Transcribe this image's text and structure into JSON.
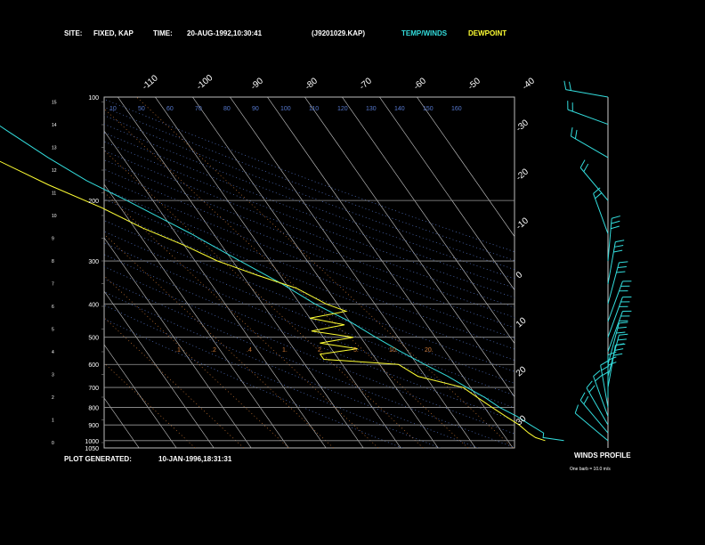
{
  "header": {
    "site_label": "SITE:",
    "site_value": "FIXED, KAP",
    "time_label": "TIME:",
    "time_value": "20-AUG-1992,10:30:41",
    "file_value": "(J9201029.KAP)",
    "legend_temp": "TEMP/WINDS",
    "legend_dew": "DEWPOINT"
  },
  "footer": {
    "generated_label": "PLOT GENERATED:",
    "generated_value": "10-JAN-1996,18:31:31"
  },
  "winds": {
    "title": "WINDS PROFILE",
    "note": "One barb = 10.0 m/s"
  },
  "colors": {
    "temp": "#33dddd",
    "dew": "#ffff33",
    "isotherm": "#cccccc",
    "isobar": "#999999",
    "mixing": "#cc7733",
    "adiabat": "#5577cc"
  },
  "chart_data": {
    "type": "line",
    "title": "",
    "ylabel": "",
    "pressure_ticks": [
      "100",
      "200",
      "300",
      "400",
      "500",
      "600",
      "700",
      "800",
      "900",
      "1000",
      "1050"
    ],
    "height_ticks": [
      "0",
      "1",
      "2",
      "3",
      "4",
      "5",
      "6",
      "7",
      "8",
      "9",
      "10",
      "11",
      "12",
      "13",
      "14",
      "15"
    ],
    "isotherm_labels_top": [
      "-110",
      "-100",
      "-90",
      "-80",
      "-70",
      "-60",
      "-50",
      "-40"
    ],
    "isotherm_labels_right": [
      "-30",
      "-20",
      "-10",
      "0",
      "10",
      "20",
      "30"
    ],
    "mixing_ratio_labels": [
      ".1",
      ".2",
      ".4",
      "1.",
      "2.",
      "5.",
      "10.",
      "20."
    ],
    "adiabat_labels": [
      "10",
      "50",
      "60",
      "70",
      "80",
      "90",
      "100",
      "110",
      "120",
      "130",
      "140",
      "150",
      "160"
    ],
    "series": [
      {
        "name": "TEMP/WINDS",
        "points": [
          {
            "p": 1000,
            "t": 25
          },
          {
            "p": 980,
            "t": 20
          },
          {
            "p": 950,
            "t": 21
          },
          {
            "p": 900,
            "t": 19
          },
          {
            "p": 850,
            "t": 17
          },
          {
            "p": 800,
            "t": 14
          },
          {
            "p": 750,
            "t": 12
          },
          {
            "p": 700,
            "t": 9
          },
          {
            "p": 650,
            "t": 6
          },
          {
            "p": 600,
            "t": 2
          },
          {
            "p": 550,
            "t": -2
          },
          {
            "p": 500,
            "t": -6
          },
          {
            "p": 450,
            "t": -10
          },
          {
            "p": 400,
            "t": -16
          },
          {
            "p": 350,
            "t": -21
          },
          {
            "p": 300,
            "t": -28
          },
          {
            "p": 250,
            "t": -36
          },
          {
            "p": 200,
            "t": -47
          },
          {
            "p": 175,
            "t": -54
          },
          {
            "p": 150,
            "t": -60
          },
          {
            "p": 125,
            "t": -66
          },
          {
            "p": 100,
            "t": -73
          }
        ]
      },
      {
        "name": "DEWPOINT",
        "points": [
          {
            "p": 1000,
            "t": 20
          },
          {
            "p": 980,
            "t": 18
          },
          {
            "p": 950,
            "t": 17
          },
          {
            "p": 900,
            "t": 16
          },
          {
            "p": 850,
            "t": 14
          },
          {
            "p": 800,
            "t": 12
          },
          {
            "p": 750,
            "t": 10
          },
          {
            "p": 700,
            "t": 8
          },
          {
            "p": 650,
            "t": -2
          },
          {
            "p": 600,
            "t": -5
          },
          {
            "p": 580,
            "t": -24
          },
          {
            "p": 560,
            "t": -24
          },
          {
            "p": 540,
            "t": -13
          },
          {
            "p": 520,
            "t": -22
          },
          {
            "p": 500,
            "t": -12
          },
          {
            "p": 480,
            "t": -22
          },
          {
            "p": 460,
            "t": -12
          },
          {
            "p": 440,
            "t": -20
          },
          {
            "p": 420,
            "t": -9
          },
          {
            "p": 400,
            "t": -13
          },
          {
            "p": 360,
            "t": -18
          },
          {
            "p": 330,
            "t": -26
          },
          {
            "p": 300,
            "t": -34
          },
          {
            "p": 270,
            "t": -40
          },
          {
            "p": 240,
            "t": -48
          },
          {
            "p": 210,
            "t": -55
          },
          {
            "p": 180,
            "t": -65
          },
          {
            "p": 150,
            "t": -75
          },
          {
            "p": 125,
            "t": -83
          },
          {
            "p": 100,
            "t": -89
          }
        ]
      }
    ],
    "winds": [
      {
        "p": 1000,
        "dir": 310,
        "spd": 12
      },
      {
        "p": 950,
        "dir": 320,
        "spd": 15
      },
      {
        "p": 900,
        "dir": 330,
        "spd": 18
      },
      {
        "p": 850,
        "dir": 340,
        "spd": 22
      },
      {
        "p": 800,
        "dir": 350,
        "spd": 25
      },
      {
        "p": 750,
        "dir": 0,
        "spd": 25
      },
      {
        "p": 700,
        "dir": 10,
        "spd": 28
      },
      {
        "p": 650,
        "dir": 15,
        "spd": 30
      },
      {
        "p": 600,
        "dir": 15,
        "spd": 30
      },
      {
        "p": 550,
        "dir": 20,
        "spd": 30
      },
      {
        "p": 500,
        "dir": 20,
        "spd": 30
      },
      {
        "p": 450,
        "dir": 20,
        "spd": 30
      },
      {
        "p": 400,
        "dir": 15,
        "spd": 30
      },
      {
        "p": 350,
        "dir": 10,
        "spd": 30
      },
      {
        "p": 300,
        "dir": 5,
        "spd": 28
      },
      {
        "p": 250,
        "dir": 340,
        "spd": 20
      },
      {
        "p": 200,
        "dir": 320,
        "spd": 18
      },
      {
        "p": 150,
        "dir": 300,
        "spd": 15
      },
      {
        "p": 120,
        "dir": 290,
        "spd": 15
      },
      {
        "p": 100,
        "dir": 280,
        "spd": 20
      }
    ]
  }
}
